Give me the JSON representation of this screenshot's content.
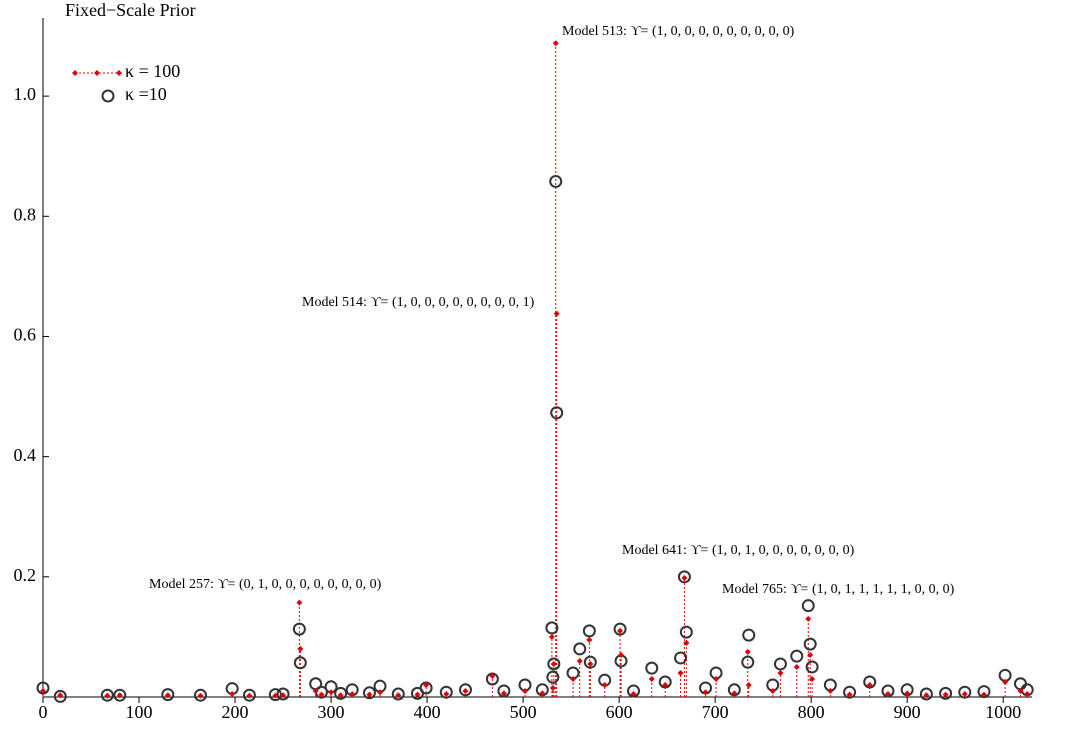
{
  "chart_data": {
    "type": "scatter",
    "title": "Fixed−Scale Prior",
    "x": [
      0,
      18,
      67,
      80,
      130,
      164,
      197,
      215,
      242,
      250,
      267,
      268,
      284,
      290,
      300,
      310,
      322,
      340,
      351,
      370,
      390,
      399,
      420,
      440,
      468,
      480,
      502,
      520,
      530,
      531,
      532,
      534,
      535,
      552,
      559,
      569,
      570,
      585,
      601,
      602,
      615,
      634,
      648,
      664,
      668,
      670,
      690,
      701,
      720,
      734,
      735,
      760,
      768,
      785,
      797,
      799,
      801,
      820,
      840,
      861,
      880,
      900,
      920,
      940,
      960,
      980,
      1002,
      1018,
      1025
    ],
    "series": [
      {
        "name": "κ = 100",
        "color": "#e00000",
        "values": [
          0.01,
          0.003,
          0.002,
          0.003,
          0.003,
          0.002,
          0.005,
          0.002,
          0.002,
          0.003,
          0.157,
          0.08,
          0.01,
          0.004,
          0.008,
          0.003,
          0.005,
          0.004,
          0.008,
          0.003,
          0.004,
          0.02,
          0.005,
          0.01,
          0.035,
          0.006,
          0.01,
          0.006,
          0.1,
          0.015,
          0.055,
          1.088,
          0.638,
          0.03,
          0.06,
          0.095,
          0.055,
          0.02,
          0.11,
          0.07,
          0.005,
          0.03,
          0.02,
          0.04,
          0.198,
          0.09,
          0.008,
          0.03,
          0.006,
          0.075,
          0.02,
          0.01,
          0.04,
          0.05,
          0.13,
          0.07,
          0.03,
          0.01,
          0.004,
          0.02,
          0.005,
          0.006,
          0.003,
          0.004,
          0.005,
          0.004,
          0.025,
          0.01,
          0.005
        ]
      },
      {
        "name": "κ =10",
        "color": "#333333",
        "values": [
          0.015,
          0.001,
          0.003,
          0.003,
          0.004,
          0.003,
          0.014,
          0.003,
          0.004,
          0.005,
          0.113,
          0.057,
          0.022,
          0.008,
          0.017,
          0.006,
          0.012,
          0.007,
          0.018,
          0.005,
          0.006,
          0.015,
          0.008,
          0.012,
          0.03,
          0.01,
          0.02,
          0.012,
          0.115,
          0.033,
          0.055,
          0.858,
          0.473,
          0.04,
          0.08,
          0.11,
          0.058,
          0.028,
          0.113,
          0.06,
          0.01,
          0.048,
          0.025,
          0.065,
          0.2,
          0.108,
          0.015,
          0.04,
          0.012,
          0.058,
          0.103,
          0.02,
          0.055,
          0.068,
          0.152,
          0.088,
          0.05,
          0.02,
          0.008,
          0.025,
          0.01,
          0.012,
          0.005,
          0.006,
          0.008,
          0.009,
          0.036,
          0.022,
          0.012
        ]
      }
    ],
    "xlim": [
      0,
      1030
    ],
    "ylim": [
      0,
      1.13
    ],
    "xticks": [
      0,
      100,
      200,
      300,
      400,
      500,
      600,
      700,
      800,
      900,
      1000
    ],
    "yticks": [
      0.2,
      0.4,
      0.6,
      0.8,
      {
        "value": 1,
        "label": "1.0"
      }
    ],
    "legend": "upper left",
    "annotations": [
      "Model 513: ϒ= (1, 0, 0, 0, 0, 0, 0, 0, 0, 0)",
      "Model 514: ϒ= (1, 0, 0, 0, 0, 0, 0, 0, 0, 1)",
      "Model 641: ϒ= (1, 0, 1, 0, 0, 0, 0, 0, 0, 0)",
      "Model 765: ϒ= (1, 0, 1, 1, 1, 1, 1, 0, 0, 0)",
      "Model 257: ϒ= (0, 1, 0, 0, 0, 0, 0, 0, 0, 0)"
    ]
  }
}
